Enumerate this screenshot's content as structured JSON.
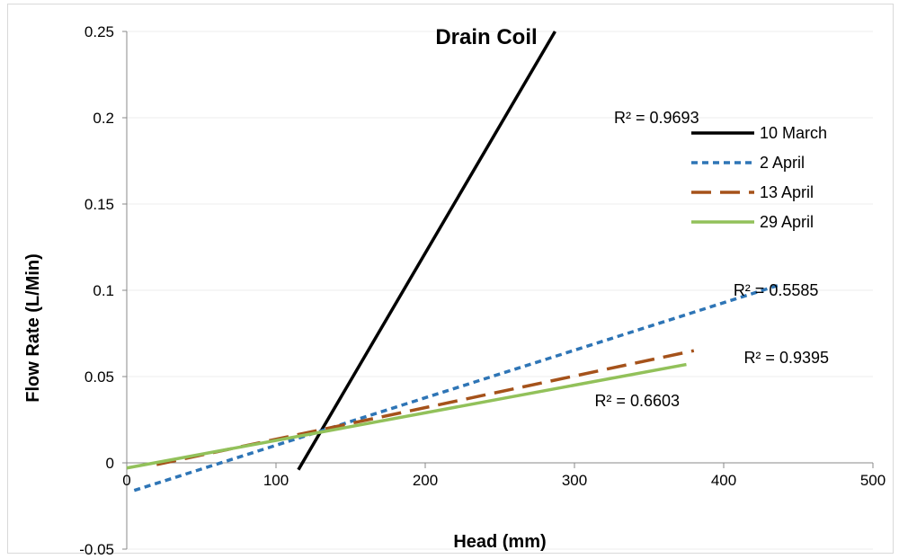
{
  "chart_data": {
    "type": "line",
    "title": "Drain Coil",
    "xlabel": "Head (mm)",
    "ylabel": "Flow Rate (L/Min)",
    "xlim": [
      0,
      500
    ],
    "ylim": [
      -0.05,
      0.25
    ],
    "x_ticks": [
      "0",
      "100",
      "200",
      "300",
      "400",
      "500"
    ],
    "y_ticks": [
      "-0.05",
      "0",
      "0.05",
      "0.1",
      "0.15",
      "0.2",
      "0.25"
    ],
    "x_tick_values": [
      0,
      100,
      200,
      300,
      400,
      500
    ],
    "y_tick_values": [
      -0.05,
      0,
      0.05,
      0.1,
      0.15,
      0.2,
      0.25
    ],
    "grid": "horizontal",
    "legend_position": "top-right",
    "series": [
      {
        "name": "10 March",
        "color": "#000000",
        "dash": "solid",
        "x": [
          115,
          287
        ],
        "y": [
          -0.004,
          0.25
        ],
        "r2_label": "R² = 0.9693",
        "r2_at": [
          355,
          0.2
        ]
      },
      {
        "name": "2 April",
        "color": "#2e75b6",
        "dash": "short-dash",
        "x": [
          5,
          437
        ],
        "y": [
          -0.016,
          0.103
        ],
        "r2_label": "R² = 0.5585",
        "r2_at": [
          435,
          0.1
        ]
      },
      {
        "name": "13 April",
        "color": "#a5521a",
        "dash": "long-dash",
        "x": [
          20,
          380
        ],
        "y": [
          -0.001,
          0.065
        ],
        "r2_label": "R² = 0.9395",
        "r2_at": [
          442,
          0.061
        ]
      },
      {
        "name": "29 April",
        "color": "#92c15a",
        "dash": "solid",
        "x": [
          0,
          375
        ],
        "y": [
          -0.003,
          0.057
        ],
        "r2_label": "R² = 0.6603",
        "r2_at": [
          342,
          0.036
        ]
      }
    ]
  }
}
